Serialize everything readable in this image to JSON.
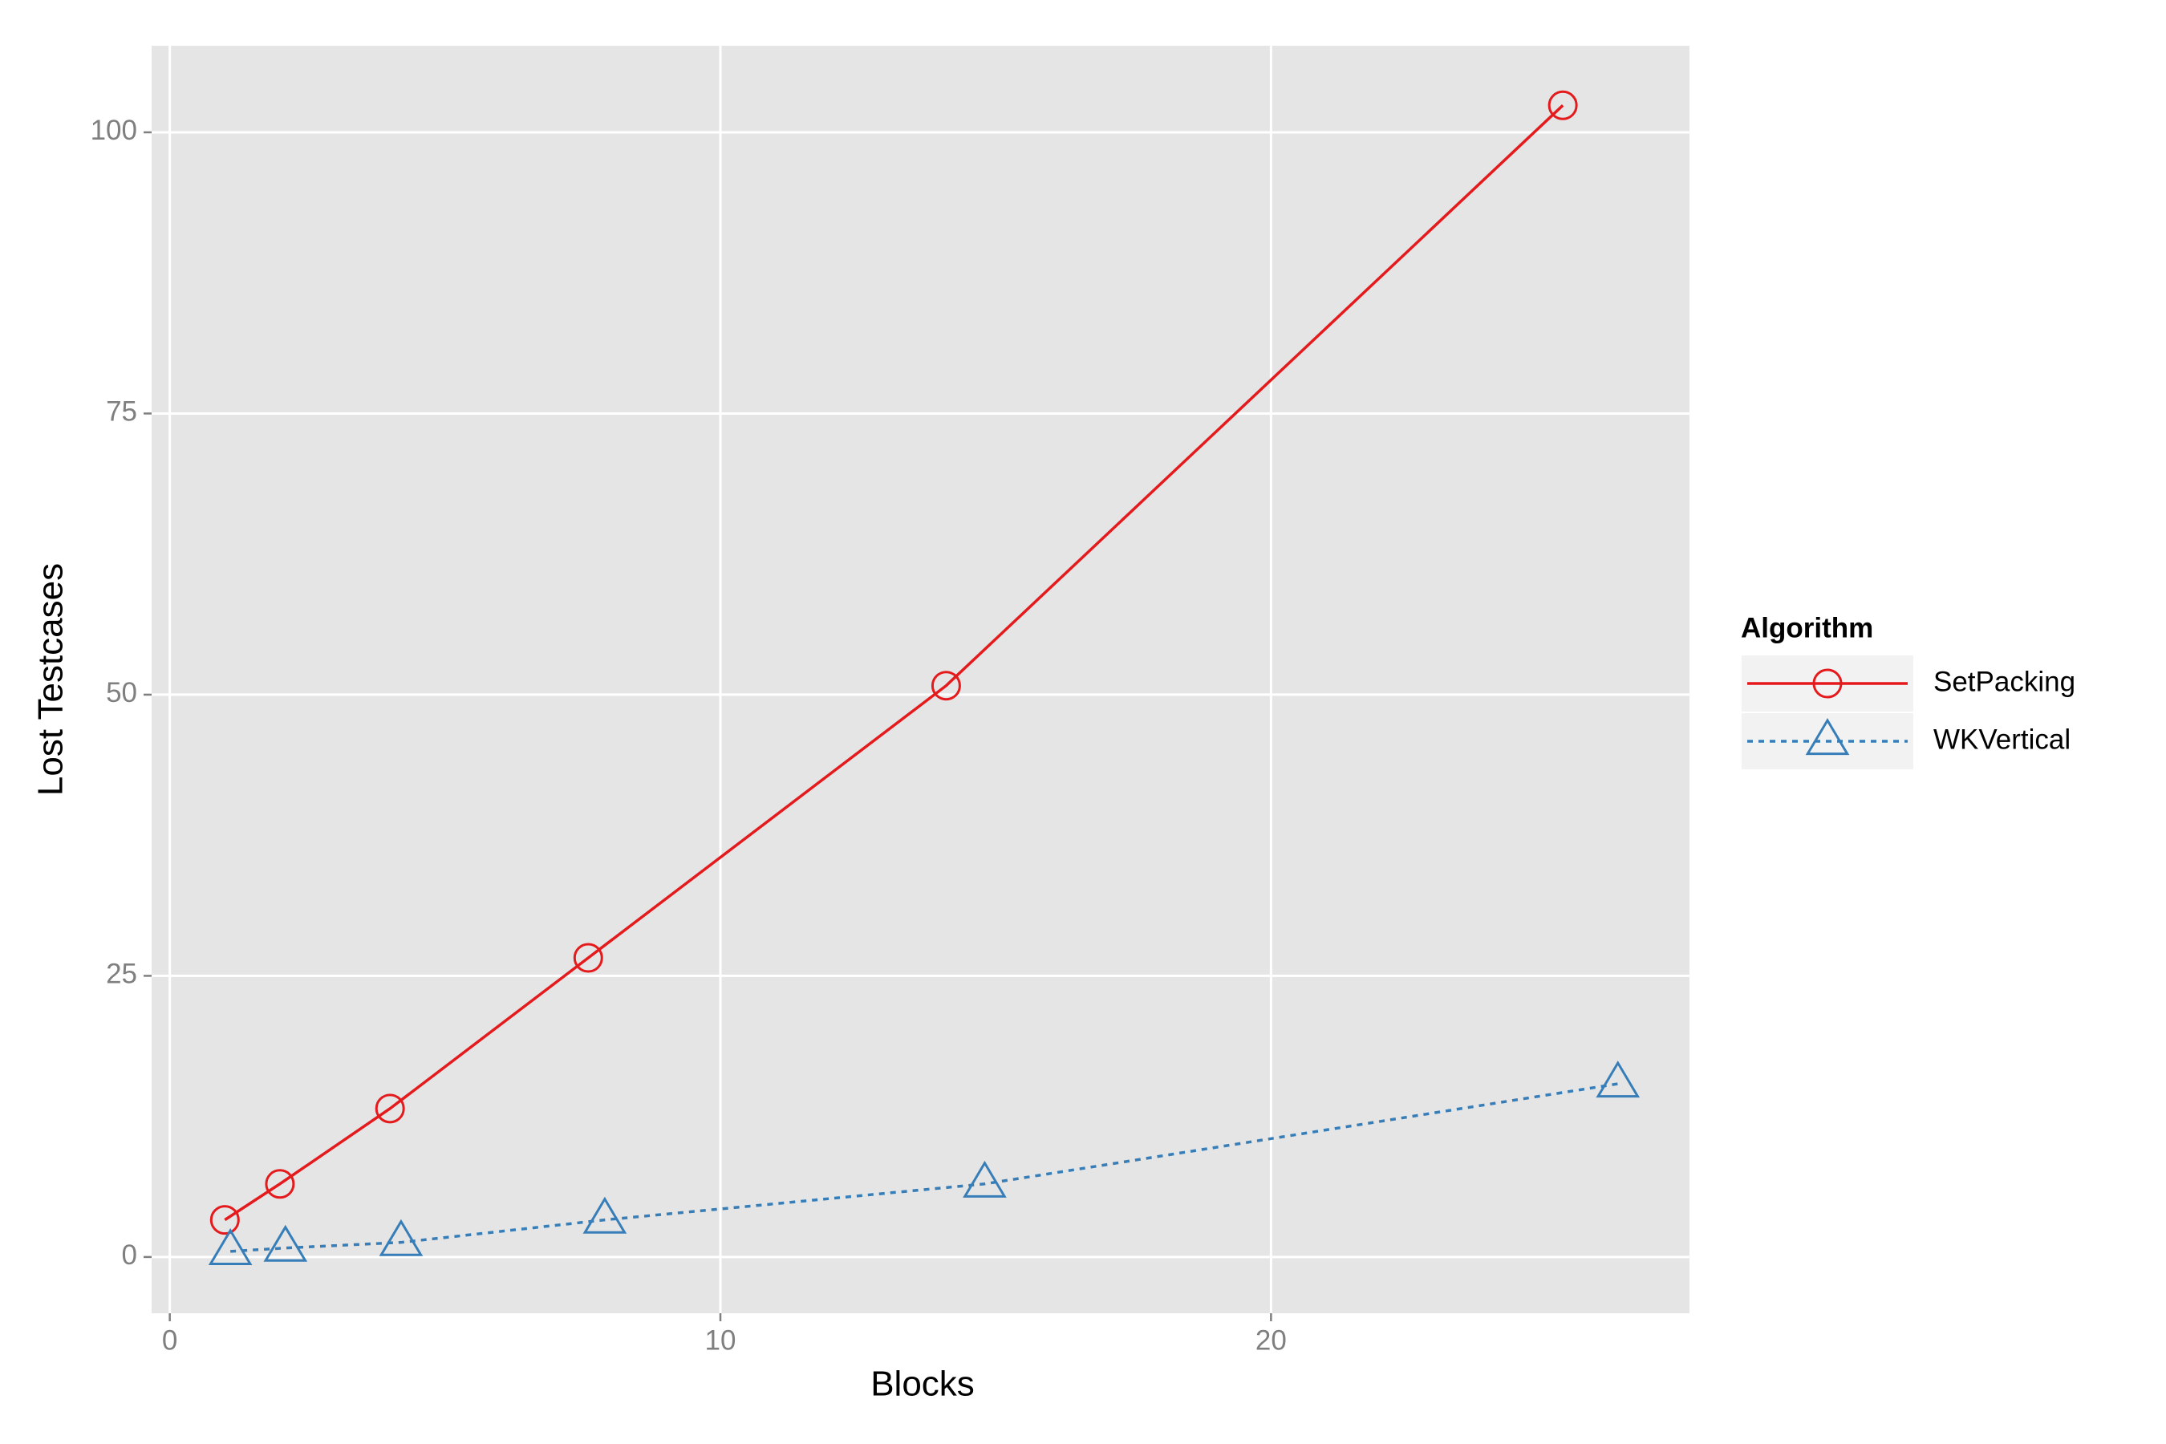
{
  "chart_data": {
    "type": "line",
    "x_label": "Blocks",
    "y_label": "Lost Testcases",
    "legend_title": "Algorithm",
    "legend_position": "right",
    "xlim": [
      -0.33,
      27.6
    ],
    "xticks": [
      0,
      10,
      20
    ],
    "ylim": [
      -5,
      107.7
    ],
    "yticks": [
      0,
      25,
      50,
      75,
      100
    ],
    "grid": true,
    "series": [
      {
        "name": "SetPacking",
        "color": "#e41a1c",
        "marker": "circle",
        "dash": "solid",
        "x": [
          1,
          2,
          4,
          7.6,
          14.1,
          25.3
        ],
        "values": [
          3.3,
          6.5,
          13.2,
          26.6,
          50.8,
          102.4
        ]
      },
      {
        "name": "WKVertical",
        "color": "#377eb8",
        "marker": "triangle",
        "dash": "dotted",
        "x": [
          1.1,
          2.1,
          4.2,
          7.9,
          14.8,
          26.3
        ],
        "values": [
          0.5,
          0.8,
          1.3,
          3.3,
          6.5,
          15.4
        ]
      }
    ]
  }
}
